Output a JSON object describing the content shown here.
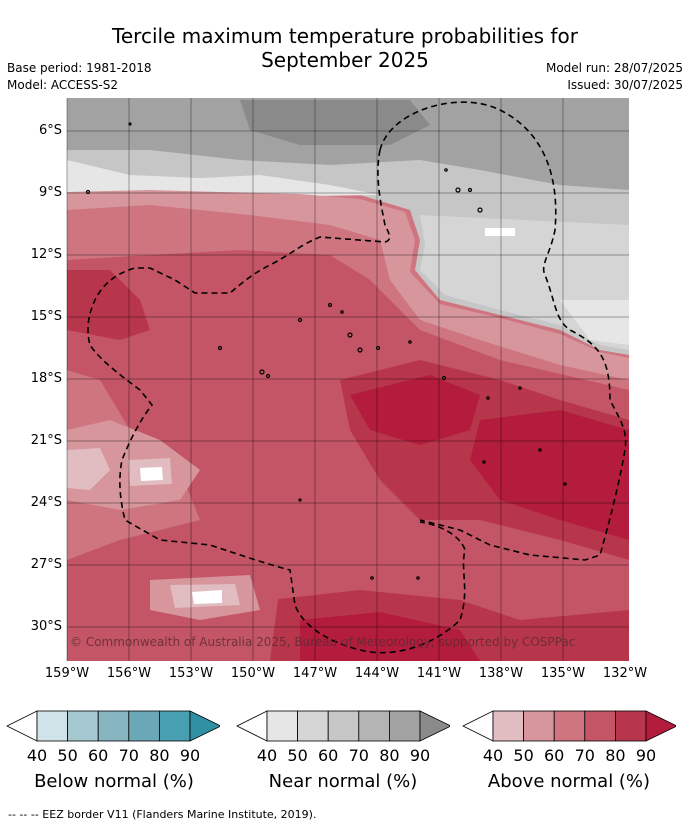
{
  "title_line1": "Tercile maximum temperature probabilities for",
  "title_line2": "September 2025",
  "base_period": "Base period: 1981-2018",
  "model": "Model: ACCESS-S2",
  "model_run": "Model run: 28/07/2025",
  "issued": "Issued: 30/07/2025",
  "copyright": "© Commonwealth of Australia 2025, Bureau of Meteorology, supported by COSPPac",
  "lat_labels": [
    "6°S",
    "9°S",
    "12°S",
    "15°S",
    "18°S",
    "21°S",
    "24°S",
    "27°S",
    "30°S"
  ],
  "lon_labels": [
    "159°W",
    "156°W",
    "153°W",
    "150°W",
    "147°W",
    "144°W",
    "141°W",
    "138°W",
    "135°W",
    "132°W"
  ],
  "colorbars": [
    {
      "label": "Below normal (%)",
      "ticks": [
        "40",
        "50",
        "60",
        "70",
        "80",
        "90"
      ],
      "colors": [
        "#ffffff",
        "#cfe3e9",
        "#a6c8d0",
        "#86b5c0",
        "#6aa8b8",
        "#479fb1",
        "#2f8fa3"
      ]
    },
    {
      "label": "Near normal (%)",
      "ticks": [
        "40",
        "50",
        "60",
        "70",
        "80",
        "90"
      ],
      "colors": [
        "#ffffff",
        "#e6e6e6",
        "#d5d5d5",
        "#c6c6c6",
        "#b4b4b4",
        "#a2a2a2",
        "#8a8a8a"
      ]
    },
    {
      "label": "Above normal (%)",
      "ticks": [
        "40",
        "50",
        "60",
        "70",
        "80",
        "90"
      ],
      "colors": [
        "#ffffff",
        "#e1bcc1",
        "#d7959c",
        "#ce7580",
        "#c35566",
        "#b8364c",
        "#b31c3c"
      ]
    }
  ],
  "footnote": "--  --  -- EEZ border V11 (Flanders Marine Institute, 2019)."
}
